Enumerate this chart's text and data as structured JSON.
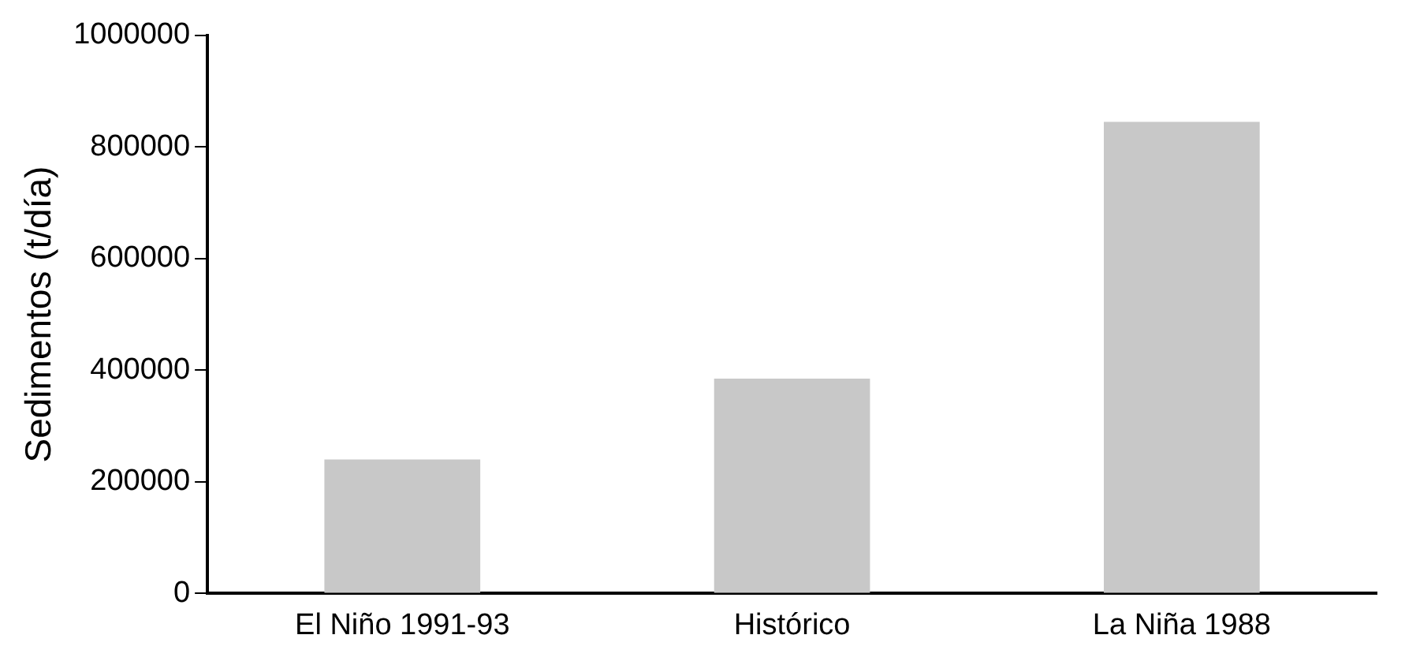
{
  "chart_data": {
    "type": "bar",
    "ylabel": "Sedimentos (t/día)",
    "categories": [
      "El Niño 1991-93",
      "Histórico",
      "La Niña 1988"
    ],
    "values": [
      240000,
      385000,
      845000
    ],
    "color": "#c8c8c8",
    "ylim": [
      0,
      1000000
    ],
    "yticks": [
      0,
      200000,
      400000,
      600000,
      800000,
      1000000
    ],
    "grid": false,
    "legend": false
  }
}
